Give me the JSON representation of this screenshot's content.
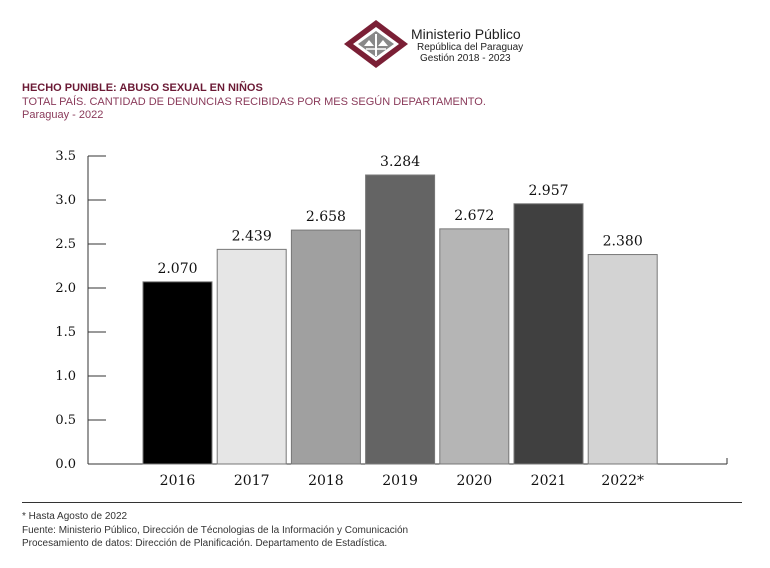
{
  "header": {
    "org_name": "Ministerio Público",
    "org_sub": "República del Paraguay",
    "org_term": "Gestión 2018 - 2023"
  },
  "chart_data": {
    "type": "bar",
    "title": "HECHO PUNIBLE: ABUSO SEXUAL EN NIÑOS",
    "subtitle": "TOTAL PAÍS. CANTIDAD DE DENUNCIAS RECIBIDAS POR MES SEGÚN DEPARTAMENTO.",
    "subtitle2": "Paraguay - 2022",
    "categories": [
      "2016",
      "2017",
      "2018",
      "2019",
      "2020",
      "2021",
      "2022*"
    ],
    "values": [
      2.07,
      2.439,
      2.658,
      3.284,
      2.672,
      2.957,
      2.38
    ],
    "value_labels": [
      "2.070",
      "2.439",
      "2.658",
      "3.284",
      "2.672",
      "2.957",
      "2.380"
    ],
    "colors": [
      "#000000",
      "#e6e6e6",
      "#a0a0a0",
      "#646464",
      "#b5b5b5",
      "#404040",
      "#d3d3d3"
    ],
    "ylim": [
      0,
      3.5
    ],
    "yticks": [
      "0.0",
      "0.5",
      "1.0",
      "1.5",
      "2.0",
      "2.5",
      "3.0",
      "3.5"
    ],
    "grid": false,
    "xlabel": "",
    "ylabel": ""
  },
  "footer": {
    "note": "* Hasta Agosto de 2022",
    "source": "Fuente: Ministerio Público, Dirección de Técnologias de la Información y Comunicación",
    "processing": "Procesamiento de datos: Dirección de Planificación. Departamento de Estadística."
  }
}
